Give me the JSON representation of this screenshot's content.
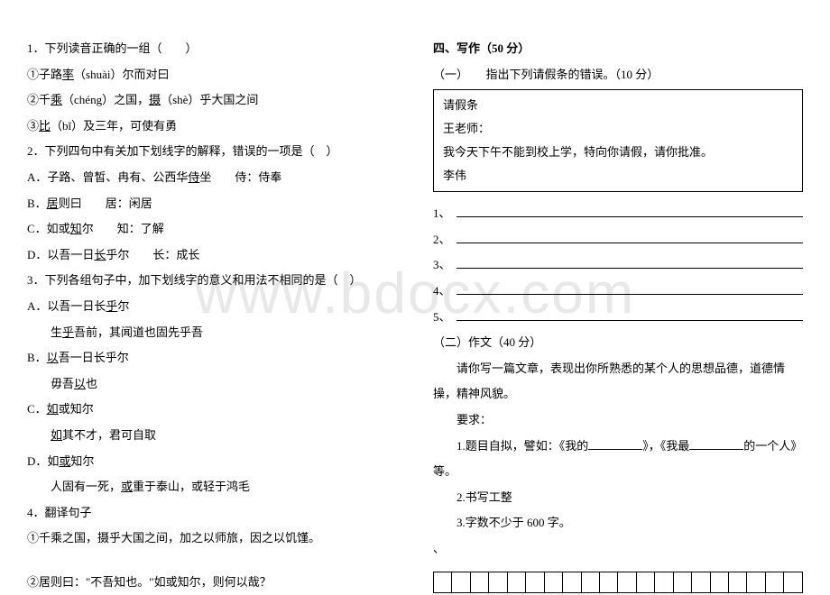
{
  "watermark": "www.bdocx.com",
  "left": {
    "q1": "1．下列读音正确的一组（　　）",
    "q1a": "①子路",
    "q1a_u": "率",
    "q1a2": "（shuài）尔而对曰",
    "q1b": "②千",
    "q1b_u": "乘",
    "q1b2": "（chéng）之国，",
    "q1b_u2": "摄",
    "q1b3": "（shè）乎大国之间",
    "q1c": "③",
    "q1c_u": "比",
    "q1c2": "（bǐ）及三年，可使有勇",
    "q2": "2．下列四句中有关加下划线字的解释，错误的一项是（　）",
    "q2a": "A．子路、曾皙、冉有、公西华",
    "q2a_u": "侍",
    "q2a2": "坐　　侍：侍奉",
    "q2b": "B．",
    "q2b_u": "居",
    "q2b2": "则曰　　居：闲居",
    "q2c": "C．如或",
    "q2c_u": "知",
    "q2c2": "尔　　知：了解",
    "q2d": "D．以吾一日",
    "q2d_u": "长",
    "q2d2": "乎尔　　长：成长",
    "q3": "3．下列各组句子中，加下划线字的意义和用法不相同的是（　）",
    "q3a1": "A．以吾一日长",
    "q3a1_u": "乎",
    "q3a1_2": "尔",
    "q3a2": "　　生",
    "q3a2_u": "乎",
    "q3a2_2": "吾前，其闻道也固先乎吾",
    "q3b1": "B．",
    "q3b1_u": "以",
    "q3b1_2": "吾一日长乎尔",
    "q3b2": "　　毋吾",
    "q3b2_u": "以",
    "q3b2_2": "也",
    "q3c1": "C．",
    "q3c1_u": "如",
    "q3c1_2": "或知尔",
    "q3c2": "　　",
    "q3c2_u": "如",
    "q3c2_2": "其不才，君可自取",
    "q3d1": "D．如",
    "q3d1_u": "或",
    "q3d1_2": "知尔",
    "q3d2": "　　人固有一死，",
    "q3d2_u": "或",
    "q3d2_2": "重于泰山，或轻于鸿毛",
    "q4": "4．翻译句子",
    "q4a": "①千乘之国，摄乎大国之间，加之以师旅，因之以饥馑。",
    "q4b": "②居则曰：\"不吾知也。\"如或知尔，则何以哉？"
  },
  "right": {
    "title": "四、写作（50 分）",
    "sub1": "（一）　　指出下列请假条的错误。（10 分）",
    "box1": "请假条",
    "box2": "王老师：",
    "box3": "我今天下午不能到校上学，特向你请假，请你批准。",
    "box4": "李伟",
    "n1": "1、",
    "n2": "2、",
    "n3": "3、",
    "n4": "4、",
    "n5": "5、",
    "sub2": "（二）作文（40 分）",
    "para1": "　　请你写一篇文章，表现出你所熟悉的某个人的思想品德，道德情操，精神风貌。",
    "req": "　　要求：",
    "r1a": "　　1.题目自拟，譬如：《我的",
    "r1b": "》，《我最",
    "r1c": "的一个人》 等。",
    "r2": "　　2.书写工整",
    "r3": "　　3.字数不少于 600 字。",
    "dot": "、"
  },
  "grid_cols": 20,
  "style": {
    "fontsize_body": 13,
    "fontsize_watermark": 64,
    "color_text": "#000000",
    "color_watermark": "#e8e8e8",
    "color_bg": "#ffffff"
  }
}
